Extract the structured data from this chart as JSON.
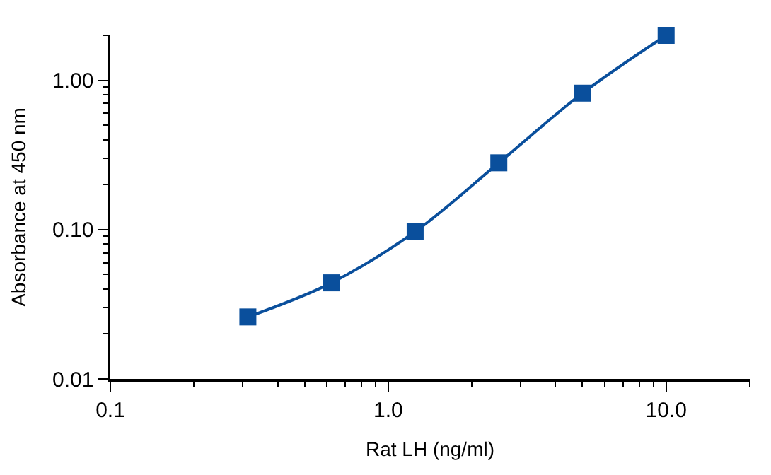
{
  "chart_data": {
    "type": "line",
    "xlabel": "Rat LH (ng/ml)",
    "ylabel": "Absorbance at 450 nm",
    "x": [
      0.3125,
      0.625,
      1.25,
      2.5,
      5,
      10
    ],
    "series": [
      {
        "color": "#0a4f9c",
        "values": [
          0.026,
          0.044,
          0.097,
          0.28,
          0.82,
          2.0
        ]
      }
    ],
    "log": "xy",
    "xlim": [
      0.1,
      20
    ],
    "ylim": [
      0.01,
      2
    ],
    "xticks": [
      {
        "value": 0.1,
        "label": "0.1"
      },
      {
        "value": 1,
        "label": "1.0"
      },
      {
        "value": 10,
        "label": "10.0"
      }
    ],
    "yticks": [
      {
        "value": 0.01,
        "label": "0.01"
      },
      {
        "value": 0.1,
        "label": "0.10"
      },
      {
        "value": 1,
        "label": "1.00"
      }
    ],
    "legend": false,
    "marker": "square",
    "line_style": "solid"
  }
}
